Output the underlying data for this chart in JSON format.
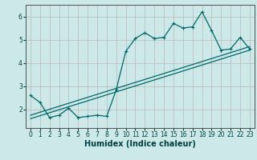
{
  "bg_color": "#cce8e8",
  "grid_color": "#b8b8b8",
  "line_color": "#006868",
  "xlabel": "Humidex (Indice chaleur)",
  "xlim": [
    -0.5,
    23.5
  ],
  "ylim": [
    1.2,
    6.5
  ],
  "yticks": [
    2,
    3,
    4,
    5,
    6
  ],
  "xticks": [
    0,
    1,
    2,
    3,
    4,
    5,
    6,
    7,
    8,
    9,
    10,
    11,
    12,
    13,
    14,
    15,
    16,
    17,
    18,
    19,
    20,
    21,
    22,
    23
  ],
  "line1_x": [
    0,
    1,
    2,
    3,
    4,
    5,
    6,
    7,
    8,
    9,
    10,
    11,
    12,
    13,
    14,
    15,
    16,
    17,
    18,
    19,
    20,
    21,
    22,
    23
  ],
  "line1_y": [
    2.6,
    2.3,
    1.65,
    1.75,
    2.05,
    1.65,
    1.7,
    1.75,
    1.7,
    2.85,
    4.5,
    5.05,
    5.3,
    5.05,
    5.1,
    5.7,
    5.5,
    5.55,
    6.2,
    5.4,
    4.55,
    4.6,
    5.1,
    4.6
  ],
  "line2_x": [
    0,
    23
  ],
  "line2_y": [
    1.6,
    4.55
  ],
  "line3_x": [
    0,
    23
  ],
  "line3_y": [
    1.75,
    4.7
  ],
  "xlabel_fontsize": 7,
  "tick_fontsize": 5.5
}
